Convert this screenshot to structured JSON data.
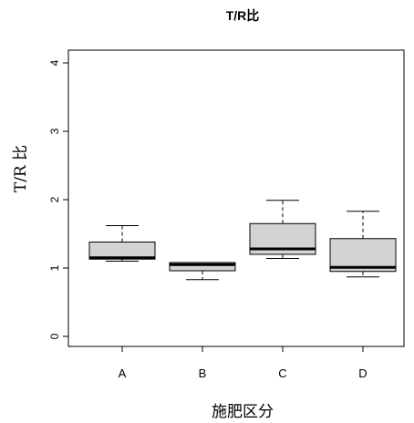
{
  "chart_data": {
    "type": "box",
    "title": "T/R比",
    "xlabel": "施肥区分",
    "ylabel": "T/R 比",
    "ylim": [
      0,
      4
    ],
    "yticks": [
      "0",
      "1",
      "2",
      "3",
      "4"
    ],
    "categories": [
      "A",
      "B",
      "C",
      "D"
    ],
    "boxes": [
      {
        "category": "A",
        "whisker_low": 1.1,
        "q1": 1.13,
        "median": 1.15,
        "q3": 1.38,
        "whisker_high": 1.62
      },
      {
        "category": "B",
        "whisker_low": 0.83,
        "q1": 0.96,
        "median": 1.05,
        "q3": 1.08,
        "whisker_high": 1.08
      },
      {
        "category": "C",
        "whisker_low": 1.14,
        "q1": 1.2,
        "median": 1.28,
        "q3": 1.65,
        "whisker_high": 1.99
      },
      {
        "category": "D",
        "whisker_low": 0.87,
        "q1": 0.95,
        "median": 1.01,
        "q3": 1.43,
        "whisker_high": 1.83
      }
    ],
    "box_fill": "#d3d3d3",
    "grid": false,
    "legend": "none"
  }
}
